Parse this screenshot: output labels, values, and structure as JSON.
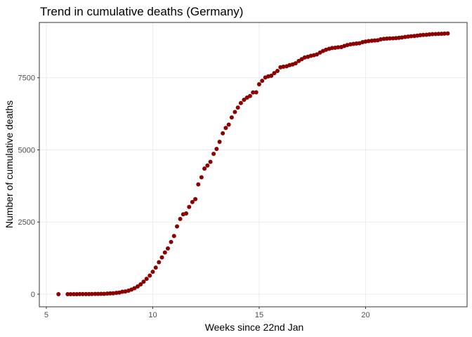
{
  "chart_data": {
    "type": "scatter",
    "title": "Trend in cumulative deaths (Germany)",
    "x_label": "Weeks since 22nd Jan",
    "y_label": "Number of cumulative deaths",
    "color": "#8b0000",
    "grid": true,
    "xlim": [
      4.67,
      24.77
    ],
    "ylim": [
      -438,
      9416
    ],
    "xticks": [
      5,
      10,
      15,
      20
    ],
    "yticks": [
      0,
      2500,
      5000,
      7500
    ],
    "x": [
      5.57,
      6,
      6.14,
      6.29,
      6.43,
      6.57,
      6.71,
      6.86,
      7,
      7.14,
      7.29,
      7.43,
      7.57,
      7.71,
      7.86,
      8,
      8.14,
      8.29,
      8.43,
      8.57,
      8.71,
      8.86,
      9,
      9.14,
      9.29,
      9.43,
      9.57,
      9.71,
      9.86,
      10,
      10.14,
      10.29,
      10.43,
      10.57,
      10.71,
      10.86,
      11,
      11.14,
      11.29,
      11.43,
      11.57,
      11.71,
      11.86,
      12,
      12.14,
      12.29,
      12.43,
      12.57,
      12.71,
      12.86,
      13,
      13.14,
      13.29,
      13.43,
      13.57,
      13.71,
      13.86,
      14,
      14.14,
      14.29,
      14.43,
      14.57,
      14.71,
      14.86,
      15,
      15.14,
      15.29,
      15.43,
      15.57,
      15.71,
      15.86,
      16,
      16.14,
      16.29,
      16.43,
      16.57,
      16.71,
      16.86,
      17,
      17.14,
      17.29,
      17.43,
      17.57,
      17.71,
      17.86,
      18,
      18.14,
      18.29,
      18.43,
      18.57,
      18.71,
      18.86,
      19,
      19.14,
      19.29,
      19.43,
      19.57,
      19.71,
      19.86,
      20,
      20.14,
      20.29,
      20.43,
      20.57,
      20.71,
      20.86,
      21,
      21.14,
      21.29,
      21.43,
      21.57,
      21.71,
      21.86,
      22,
      22.14,
      22.29,
      22.43,
      22.57,
      22.71,
      22.86,
      23,
      23.14,
      23.29,
      23.43,
      23.57,
      23.71,
      23.86
    ],
    "values": [
      0,
      0,
      0,
      0,
      0,
      2,
      2,
      3,
      3,
      6,
      8,
      9,
      12,
      13,
      20,
      26,
      31,
      47,
      55,
      86,
      94,
      123,
      157,
      206,
      267,
      342,
      433,
      533,
      645,
      775,
      920,
      1107,
      1275,
      1444,
      1584,
      1810,
      2016,
      2349,
      2607,
      2767,
      2799,
      3022,
      3194,
      3294,
      3804,
      4052,
      4352,
      4459,
      4586,
      4862,
      5033,
      5279,
      5575,
      5760,
      5877,
      6126,
      6314,
      6467,
      6623,
      6736,
      6812,
      6866,
      6993,
      6996,
      7275,
      7392,
      7510,
      7549,
      7569,
      7661,
      7738,
      7861,
      7884,
      7897,
      7938,
      7962,
      8003,
      8081,
      8144,
      8203,
      8228,
      8261,
      8283,
      8309,
      8372,
      8428,
      8470,
      8504,
      8530,
      8540,
      8555,
      8563,
      8602,
      8635,
      8658,
      8674,
      8685,
      8695,
      8736,
      8752,
      8772,
      8783,
      8793,
      8800,
      8831,
      8846,
      8856,
      8863,
      8867,
      8875,
      8885,
      8895,
      8914,
      8927,
      8940,
      8947,
      8961,
      8974,
      8984,
      8989,
      9003,
      9010,
      9016,
      9022,
      9025,
      9030,
      9035
    ]
  }
}
